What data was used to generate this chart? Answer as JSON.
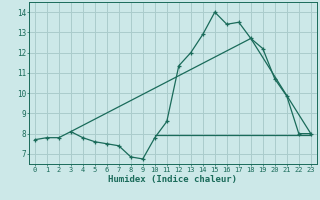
{
  "bg_color": "#cce8e8",
  "grid_color": "#aacccc",
  "line_color": "#1a6b5a",
  "xlabel": "Humidex (Indice chaleur)",
  "xlim": [
    -0.5,
    23.5
  ],
  "ylim": [
    6.5,
    14.5
  ],
  "yticks": [
    7,
    8,
    9,
    10,
    11,
    12,
    13,
    14
  ],
  "xticks": [
    0,
    1,
    2,
    3,
    4,
    5,
    6,
    7,
    8,
    9,
    10,
    11,
    12,
    13,
    14,
    15,
    16,
    17,
    18,
    19,
    20,
    21,
    22,
    23
  ],
  "series1_x": [
    0,
    1,
    2,
    3,
    4,
    5,
    6,
    7,
    8,
    9,
    10,
    11,
    12,
    13,
    14,
    15,
    16,
    17,
    18,
    19,
    20,
    21,
    22,
    23
  ],
  "series1_y": [
    7.7,
    7.8,
    7.8,
    8.1,
    7.8,
    7.6,
    7.5,
    7.4,
    6.85,
    6.75,
    7.8,
    8.6,
    11.35,
    12.0,
    12.9,
    14.0,
    13.4,
    13.5,
    12.7,
    12.2,
    10.7,
    9.85,
    8.0,
    8.0
  ],
  "series2_x": [
    3,
    18,
    23
  ],
  "series2_y": [
    8.1,
    12.7,
    8.0
  ],
  "series3_x": [
    10,
    23
  ],
  "series3_y": [
    7.95,
    7.95
  ]
}
